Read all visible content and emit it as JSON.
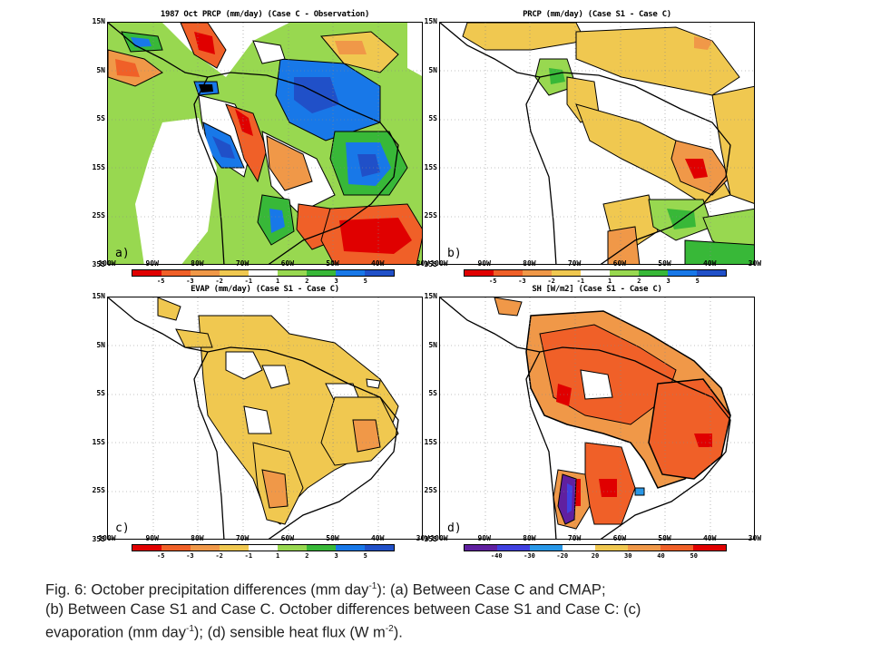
{
  "panels": [
    {
      "id": "a",
      "title": "1987 Oct PRCP (mm/day) (Case C - Observation)",
      "label": "a)",
      "colorbar": {
        "colors": [
          "#e00000",
          "#f06028",
          "#f09848",
          "#f0c850",
          "#ffffff",
          "#98d850",
          "#38b838",
          "#1878e8",
          "#2050c8"
        ],
        "ticks": [
          "-5",
          "-3",
          "-2",
          "-1",
          "1",
          "2",
          "3",
          "5"
        ]
      }
    },
    {
      "id": "b",
      "title": "PRCP (mm/day) (Case S1 - Case C)",
      "label": "b)",
      "colorbar": {
        "colors": [
          "#e00000",
          "#f06028",
          "#f09848",
          "#f0c850",
          "#ffffff",
          "#98d850",
          "#38b838",
          "#1878e8",
          "#2050c8"
        ],
        "ticks": [
          "-5",
          "-3",
          "-2",
          "-1",
          "1",
          "2",
          "3",
          "5"
        ]
      }
    },
    {
      "id": "c",
      "title": "EVAP (mm/day) (Case S1 - Case C)",
      "label": "c)",
      "colorbar": {
        "colors": [
          "#e00000",
          "#f06028",
          "#f09848",
          "#f0c850",
          "#ffffff",
          "#98d850",
          "#38b838",
          "#1878e8",
          "#2050c8"
        ],
        "ticks": [
          "-5",
          "-3",
          "-2",
          "-1",
          "1",
          "2",
          "3",
          "5"
        ]
      }
    },
    {
      "id": "d",
      "title": "SH [W/m2] (Case S1 - Case C)",
      "label": "d)",
      "colorbar": {
        "colors": [
          "#6020a0",
          "#4040e0",
          "#2898e8",
          "#ffffff",
          "#f0c850",
          "#f09848",
          "#f06028",
          "#e00000"
        ],
        "ticks": [
          "-40",
          "-30",
          "-20",
          "20",
          "30",
          "40",
          "50"
        ]
      }
    }
  ],
  "axes": {
    "lat_labels": [
      "15N",
      "5N",
      "5S",
      "15S",
      "25S",
      "35S"
    ],
    "lon_labels": [
      "100W",
      "90W",
      "80W",
      "70W",
      "60W",
      "50W",
      "40W",
      "30W"
    ]
  },
  "caption": {
    "line1": "Fig. 6: October precipitation differences (mm day",
    "sup1": "-1",
    "line1b": "): (a) Between Case C and CMAP;",
    "line2": "(b) Between Case S1 and Case C.  October differences between Case S1 and Case C: (c)",
    "line3a": "evaporation (mm day",
    "sup3a": "-1",
    "line3b": "); (d) sensible heat flux (W m",
    "sup3b": "-2",
    "line3c": ")."
  }
}
